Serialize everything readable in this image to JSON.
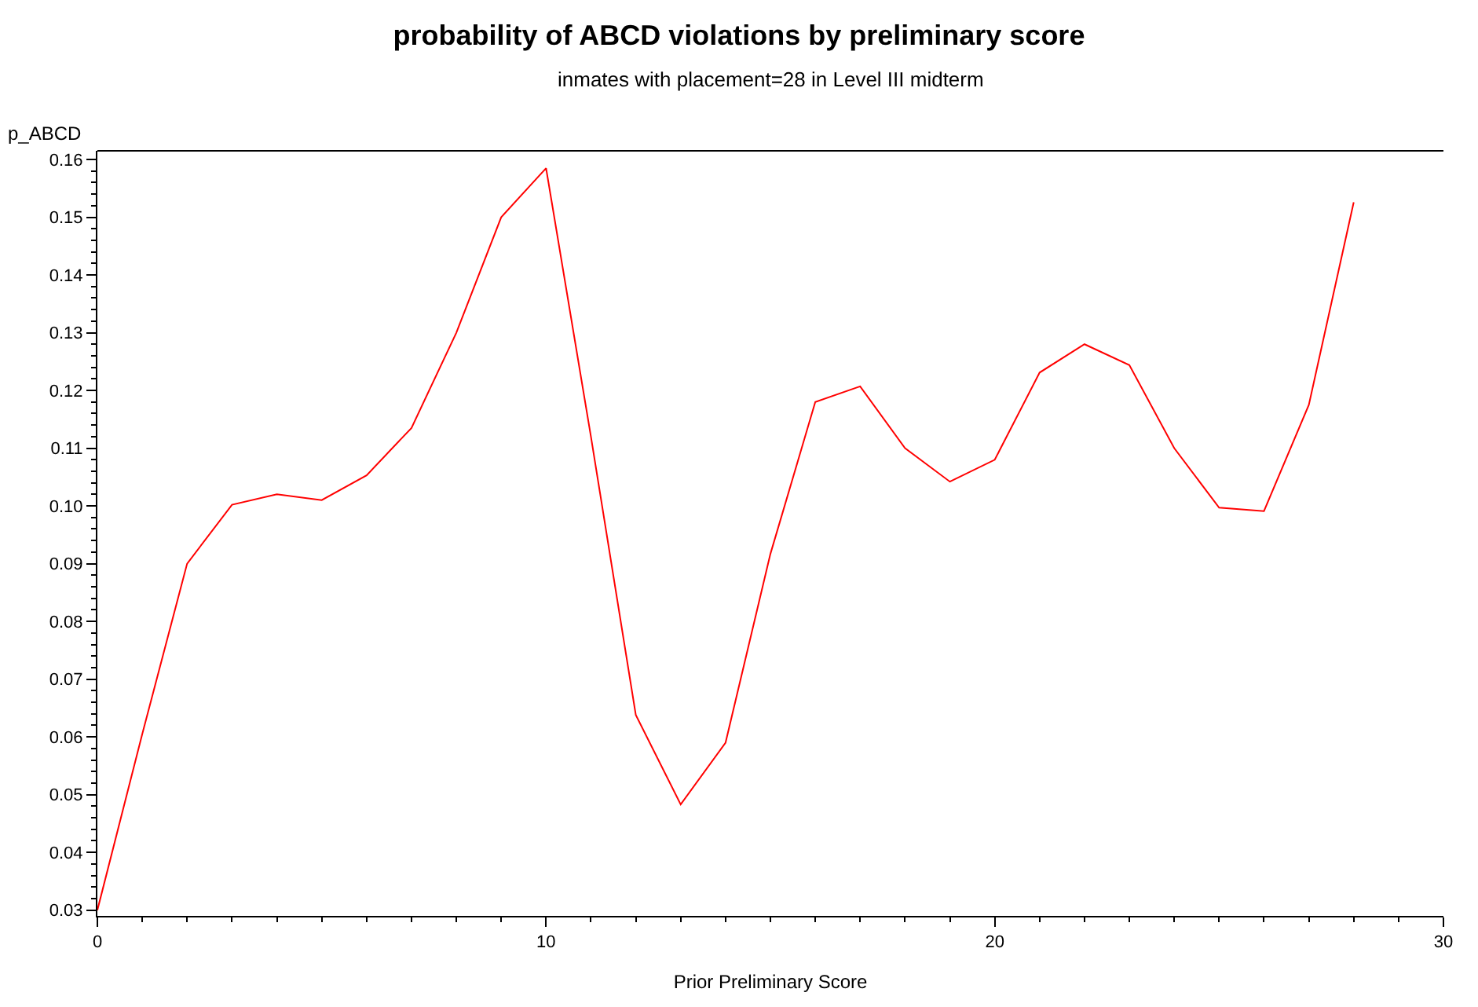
{
  "chart_data": {
    "type": "line",
    "title": "probability of ABCD violations by preliminary score",
    "subtitle": "inmates with placement=28 in Level III midterm",
    "xlabel": "Prior Preliminary Score",
    "ylabel": "p_ABCD",
    "x": [
      0,
      1,
      2,
      3,
      4,
      5,
      6,
      7,
      8,
      9,
      10,
      11,
      12,
      13,
      14,
      15,
      16,
      17,
      18,
      19,
      20,
      21,
      22,
      23,
      24,
      25,
      26,
      27,
      28
    ],
    "series": [
      {
        "color": "#ff0000",
        "values": [
          0.03,
          0.0605,
          0.09,
          0.1002,
          0.102,
          0.101,
          0.1053,
          0.1135,
          0.13,
          0.15,
          0.1585,
          0.112,
          0.0638,
          0.0483,
          0.059,
          0.0917,
          0.118,
          0.1207,
          0.11,
          0.1042,
          0.108,
          0.1231,
          0.128,
          0.1244,
          0.11,
          0.0997,
          0.0991,
          0.1175,
          0.1526
        ]
      }
    ],
    "xlim": [
      0,
      30
    ],
    "xticks": [
      0,
      10,
      20,
      30
    ],
    "ylim": [
      0.029,
      0.1615
    ],
    "yticks": [
      {
        "value": 0.03,
        "label": "0.03"
      },
      {
        "value": 0.04,
        "label": "0.04"
      },
      {
        "value": 0.05,
        "label": "0.05"
      },
      {
        "value": 0.06,
        "label": "0.06"
      },
      {
        "value": 0.07,
        "label": "0.07"
      },
      {
        "value": 0.08,
        "label": "0.08"
      },
      {
        "value": 0.09,
        "label": "0.09"
      },
      {
        "value": 0.1,
        "label": "0.10"
      },
      {
        "value": 0.11,
        "label": "0.11"
      },
      {
        "value": 0.12,
        "label": "0.12"
      },
      {
        "value": 0.13,
        "label": "0.13"
      },
      {
        "value": 0.14,
        "label": "0.14"
      },
      {
        "value": 0.15,
        "label": "0.15"
      },
      {
        "value": 0.16,
        "label": "0.16"
      }
    ],
    "legend": false,
    "marker": "none",
    "line_style": "solid"
  }
}
